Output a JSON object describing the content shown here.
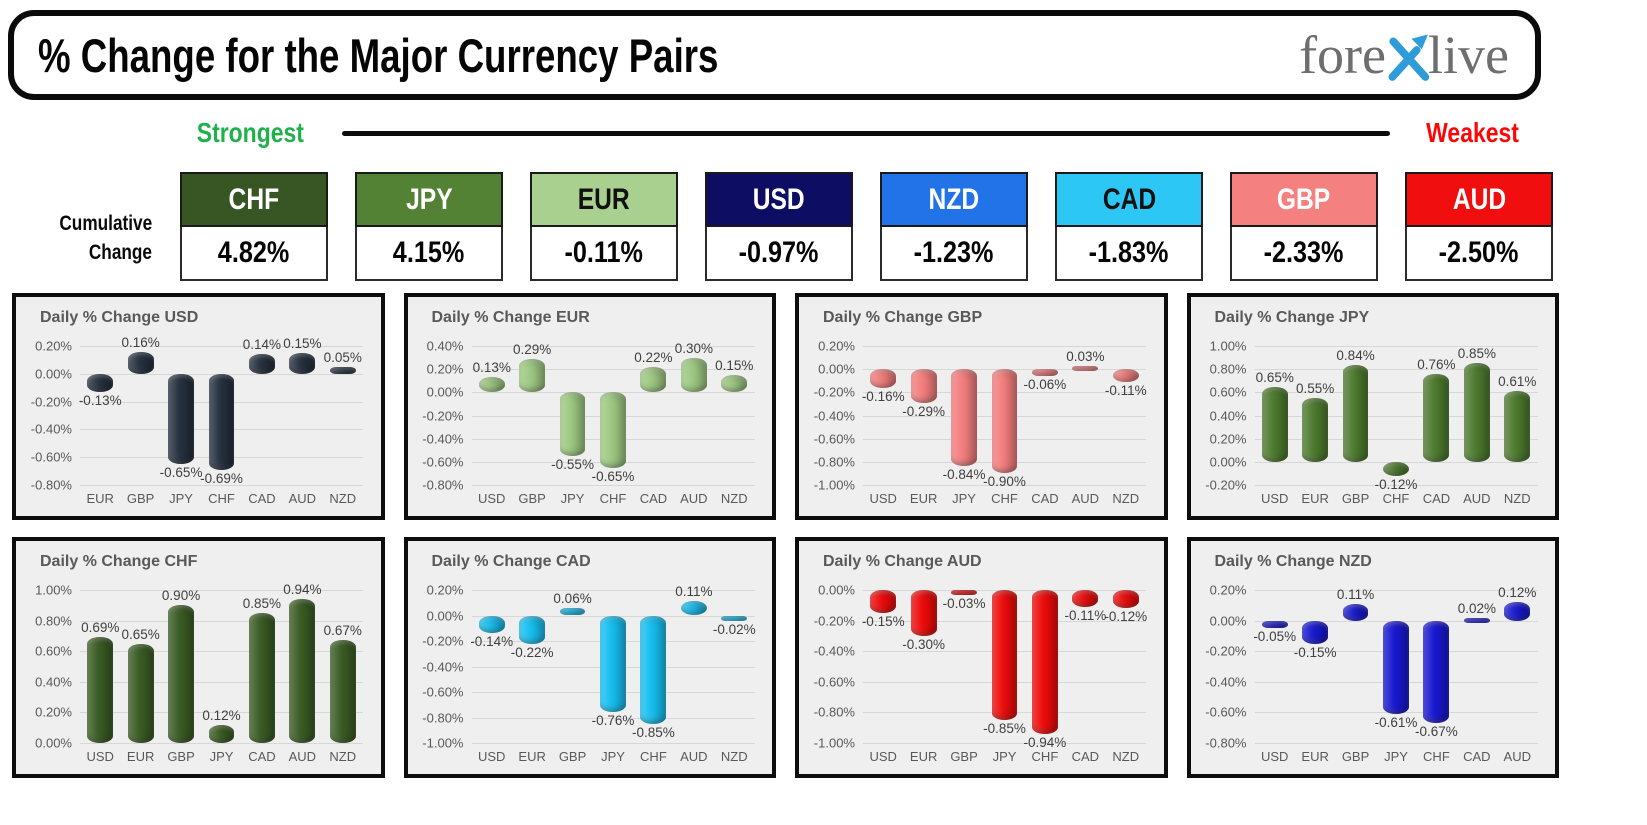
{
  "header": {
    "title": "% Change for the Major Currency Pairs",
    "logo": {
      "fore": "fore",
      "x_icon": "crossed-arrows-x",
      "live": "live",
      "text_color": "#6e6e6e",
      "x_color": "#2f9bd9"
    }
  },
  "scale": {
    "strongest": "Strongest",
    "weakest": "Weakest",
    "strongest_color": "#21b14c",
    "weakest_color": "#fe0606"
  },
  "cumulative": {
    "label_line1": "Cumulative",
    "label_line2": "Change",
    "boxes": [
      {
        "code": "CHF",
        "value": "4.82%",
        "bg": "#375623",
        "fg": "#ffffff"
      },
      {
        "code": "JPY",
        "value": "4.15%",
        "bg": "#548235",
        "fg": "#ffffff"
      },
      {
        "code": "EUR",
        "value": "-0.11%",
        "bg": "#a9d08e",
        "fg": "#111111"
      },
      {
        "code": "USD",
        "value": "-0.97%",
        "bg": "#0d0d64",
        "fg": "#ffffff"
      },
      {
        "code": "NZD",
        "value": "-1.23%",
        "bg": "#2272e8",
        "fg": "#ffffff"
      },
      {
        "code": "CAD",
        "value": "-1.83%",
        "bg": "#2cc7f4",
        "fg": "#111111"
      },
      {
        "code": "GBP",
        "value": "-2.33%",
        "bg": "#f58080",
        "fg": "#ffffff"
      },
      {
        "code": "AUD",
        "value": "-2.50%",
        "bg": "#f10e0e",
        "fg": "#ffffff"
      }
    ]
  },
  "chart_data": [
    {
      "type": "bar",
      "title": "Daily % Change USD",
      "categories": [
        "EUR",
        "GBP",
        "JPY",
        "CHF",
        "CAD",
        "AUD",
        "NZD"
      ],
      "values": [
        -0.13,
        0.16,
        -0.65,
        -0.69,
        0.14,
        0.15,
        0.05
      ],
      "ylim": [
        -0.8,
        0.2
      ],
      "tick_step": 0.2,
      "bar_color": "#25303f",
      "grid": true,
      "legend": "none",
      "label_format": "0.00%"
    },
    {
      "type": "bar",
      "title": "Daily % Change EUR",
      "categories": [
        "USD",
        "GBP",
        "JPY",
        "CHF",
        "CAD",
        "AUD",
        "NZD"
      ],
      "values": [
        0.13,
        0.29,
        -0.55,
        -0.65,
        0.22,
        0.3,
        0.15
      ],
      "ylim": [
        -0.8,
        0.4
      ],
      "tick_step": 0.2,
      "bar_color": "#9fc983",
      "grid": true,
      "legend": "none",
      "label_format": "0.00%"
    },
    {
      "type": "bar",
      "title": "Daily % Change GBP",
      "categories": [
        "USD",
        "EUR",
        "JPY",
        "CHF",
        "CAD",
        "AUD",
        "NZD"
      ],
      "values": [
        -0.16,
        -0.29,
        -0.84,
        -0.9,
        -0.06,
        0.03,
        -0.11
      ],
      "ylim": [
        -1.0,
        0.2
      ],
      "tick_step": 0.2,
      "bar_color": "#f47e7e",
      "grid": true,
      "legend": "none",
      "label_format": "0.00%"
    },
    {
      "type": "bar",
      "title": "Daily % Change JPY",
      "categories": [
        "USD",
        "EUR",
        "GBP",
        "CHF",
        "CAD",
        "AUD",
        "NZD"
      ],
      "values": [
        0.65,
        0.55,
        0.84,
        -0.12,
        0.76,
        0.85,
        0.61
      ],
      "ylim": [
        -0.2,
        1.0
      ],
      "tick_step": 0.2,
      "bar_color": "#4e7b2f",
      "grid": true,
      "legend": "none",
      "label_format": "0.00%"
    },
    {
      "type": "bar",
      "title": "Daily % Change CHF",
      "categories": [
        "USD",
        "EUR",
        "GBP",
        "JPY",
        "CAD",
        "AUD",
        "NZD"
      ],
      "values": [
        0.69,
        0.65,
        0.9,
        0.12,
        0.85,
        0.94,
        0.67
      ],
      "ylim": [
        0.0,
        1.0
      ],
      "tick_step": 0.2,
      "bar_color": "#3a5c24",
      "grid": true,
      "legend": "none",
      "label_format": "0.00%"
    },
    {
      "type": "bar",
      "title": "Daily % Change CAD",
      "categories": [
        "USD",
        "EUR",
        "GBP",
        "JPY",
        "CHF",
        "AUD",
        "NZD"
      ],
      "values": [
        -0.14,
        -0.22,
        0.06,
        -0.76,
        -0.85,
        0.11,
        -0.02
      ],
      "ylim": [
        -1.0,
        0.2
      ],
      "tick_step": 0.2,
      "bar_color": "#17bff0",
      "grid": true,
      "legend": "none",
      "label_format": "0.00%"
    },
    {
      "type": "bar",
      "title": "Daily % Change AUD",
      "categories": [
        "USD",
        "EUR",
        "GBP",
        "JPY",
        "CHF",
        "CAD",
        "NZD"
      ],
      "values": [
        -0.15,
        -0.3,
        -0.03,
        -0.85,
        -0.94,
        -0.11,
        -0.12
      ],
      "ylim": [
        -1.0,
        0.0
      ],
      "tick_step": 0.2,
      "bar_color": "#ee0b0b",
      "grid": true,
      "legend": "none",
      "label_format": "0.00%"
    },
    {
      "type": "bar",
      "title": "Daily % Change NZD",
      "categories": [
        "USD",
        "EUR",
        "GBP",
        "JPY",
        "CHF",
        "CAD",
        "AUD"
      ],
      "values": [
        -0.05,
        -0.15,
        0.11,
        -0.61,
        -0.67,
        0.02,
        0.12
      ],
      "ylim": [
        -0.8,
        0.2
      ],
      "tick_step": 0.2,
      "bar_color": "#1818d1",
      "grid": true,
      "legend": "none",
      "label_format": "0.00%"
    }
  ]
}
